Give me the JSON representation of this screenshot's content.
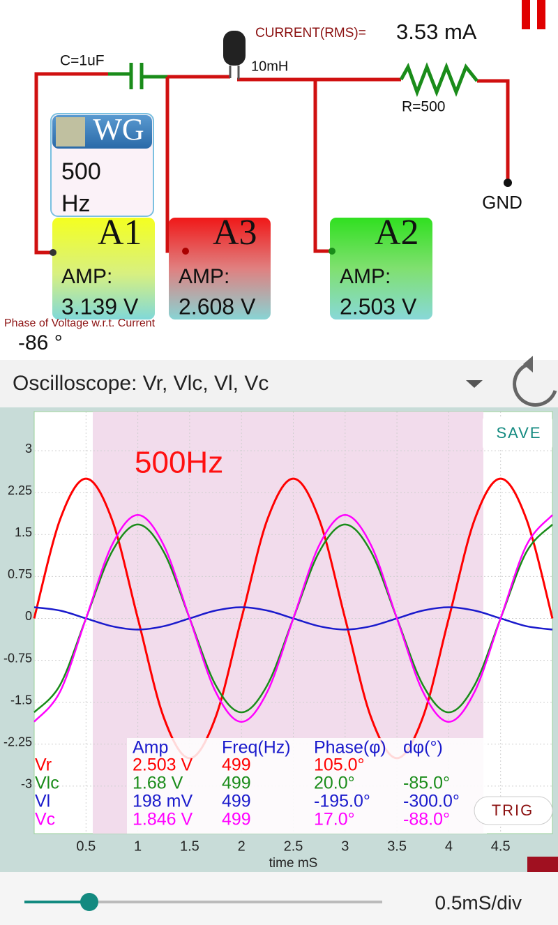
{
  "header": {
    "current_label": "CURRENT(RMS)=",
    "current_value": "3.53 mA"
  },
  "circuit": {
    "capacitor": "C=1uF",
    "inductor": "10mH",
    "resistor": "R=500",
    "ground": "GND",
    "generator": {
      "title": "WG",
      "frequency": "500",
      "unit": "Hz"
    },
    "probes": [
      {
        "name": "A1",
        "label": "AMP:",
        "value": "3.139 V"
      },
      {
        "name": "A3",
        "label": "AMP:",
        "value": "2.608 V"
      },
      {
        "name": "A2",
        "label": "AMP:",
        "value": "2.503 V"
      }
    ]
  },
  "phase": {
    "label": "Phase of Voltage w.r.t. Current",
    "value": "-86 °"
  },
  "scope_selector": "Oscilloscope: Vr, Vlc, Vl, Vc",
  "buttons": {
    "save": "SAVE",
    "trig": "TRIG"
  },
  "timebase": "0.5mS/div",
  "chart_data": {
    "type": "line",
    "annotation": "500Hz",
    "xlabel": "time mS",
    "x": [
      0,
      0.25,
      0.5,
      0.75,
      1,
      1.25,
      1.5,
      1.75,
      2,
      2.25,
      2.5,
      2.75,
      3,
      3.25,
      3.5,
      3.75,
      4,
      4.25,
      4.5,
      4.75,
      5
    ],
    "series": [
      {
        "name": "Vr",
        "color": "#ff0000",
        "values": [
          0,
          1.77,
          2.5,
          1.77,
          0,
          -1.77,
          -2.5,
          -1.77,
          0,
          1.77,
          2.5,
          1.77,
          0,
          -1.77,
          -2.5,
          -1.77,
          0,
          1.77,
          2.5,
          1.77,
          0
        ]
      },
      {
        "name": "Vlc",
        "color": "#1a8c1a",
        "values": [
          -1.68,
          -1.19,
          0,
          1.19,
          1.68,
          1.19,
          0,
          -1.19,
          -1.68,
          -1.19,
          0,
          1.19,
          1.68,
          1.19,
          0,
          -1.19,
          -1.68,
          -1.19,
          0,
          1.19,
          1.68
        ]
      },
      {
        "name": "Vl",
        "color": "#1a1acc",
        "values": [
          0.2,
          0.14,
          0,
          -0.14,
          -0.2,
          -0.14,
          0,
          0.14,
          0.2,
          0.14,
          0,
          -0.14,
          -0.2,
          -0.14,
          0,
          0.14,
          0.2,
          0.14,
          0,
          -0.14,
          -0.2
        ]
      },
      {
        "name": "Vc",
        "color": "#ff00ff",
        "values": [
          -1.85,
          -1.31,
          0,
          1.31,
          1.85,
          1.31,
          0,
          -1.31,
          -1.85,
          -1.31,
          0,
          1.31,
          1.85,
          1.31,
          0,
          -1.31,
          -1.85,
          -1.31,
          0,
          1.31,
          1.85
        ]
      }
    ],
    "xlim": [
      0,
      5
    ],
    "ylim": [
      -3.85,
      3.7
    ],
    "xticks": [
      0.5,
      1,
      1.5,
      2,
      2.5,
      3,
      3.5,
      4,
      4.5
    ],
    "yticks": [
      3,
      2.25,
      1.5,
      0.75,
      0,
      -0.75,
      -1.5,
      -2.25,
      -3
    ],
    "grid": true,
    "readout": {
      "headers": [
        "Amp",
        "Freq(Hz)",
        "Phase(φ)",
        "dφ(°)"
      ],
      "rows": [
        [
          "2.503 V",
          "499",
          "105.0°"
        ],
        [
          "1.68 V",
          "499",
          "20.0°",
          "-85.0°"
        ],
        [
          "198 mV",
          "499",
          "-195.0°",
          "-300.0°"
        ],
        [
          "1.846 V",
          "499",
          "17.0°",
          "-88.0°"
        ]
      ]
    }
  }
}
